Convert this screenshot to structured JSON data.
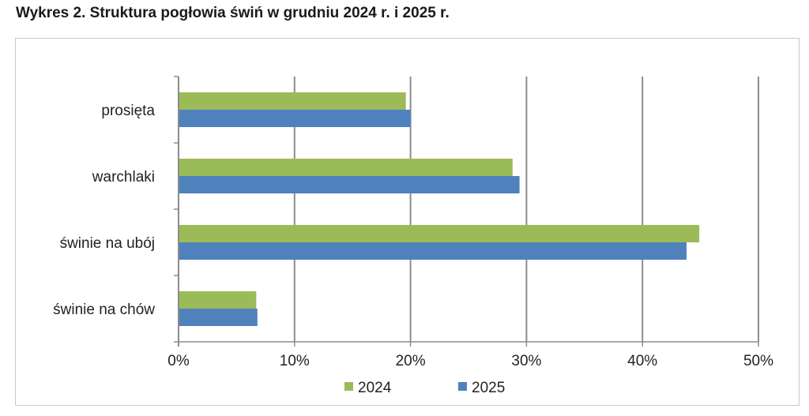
{
  "title": "Wykres 2. Struktura pogłowia świń w grudniu 2024 r. i 2025 r.",
  "chart_data": {
    "type": "bar",
    "orientation": "horizontal",
    "title": "",
    "xlabel": "",
    "ylabel": "",
    "categories": [
      "prosięta",
      "warchlaki",
      "świnie na ubój",
      "świnie na chów"
    ],
    "series": [
      {
        "name": "2024",
        "color": "#9bbb59",
        "values": [
          19.6,
          28.8,
          44.9,
          6.7
        ]
      },
      {
        "name": "2025",
        "color": "#4f81bd",
        "values": [
          20.0,
          29.4,
          43.8,
          6.8
        ]
      }
    ],
    "xlim": [
      0,
      50
    ],
    "ticks": [
      0,
      10,
      20,
      30,
      40,
      50
    ],
    "tick_labels": [
      "0%",
      "10%",
      "20%",
      "30%",
      "40%",
      "50%"
    ],
    "grid": "vertical",
    "legend": "bottom-center"
  }
}
